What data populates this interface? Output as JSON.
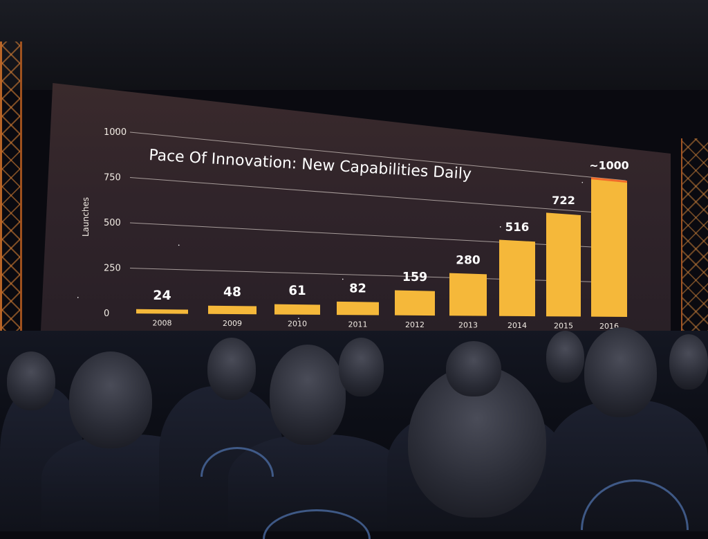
{
  "chart_data": {
    "type": "bar",
    "title": "Pace Of Innovation: New Capabilities Daily",
    "ylabel": "Launches",
    "xlabel": "",
    "ylim": [
      0,
      1000
    ],
    "yticks": [
      "1000",
      "750",
      "500",
      "250",
      "0"
    ],
    "grid": true,
    "categories": [
      "2008",
      "2009",
      "2010",
      "2011",
      "2012",
      "2013",
      "2014",
      "2015",
      "2016"
    ],
    "values": [
      24,
      48,
      61,
      82,
      159,
      280,
      516,
      722,
      1000
    ],
    "value_labels": [
      "24",
      "48",
      "61",
      "82",
      "159",
      "280",
      "516",
      "722",
      "~1000"
    ],
    "colors": {
      "bar": "#f5b83a",
      "bar_top_2016": "#f06a2a",
      "text": "#ffffff"
    }
  }
}
